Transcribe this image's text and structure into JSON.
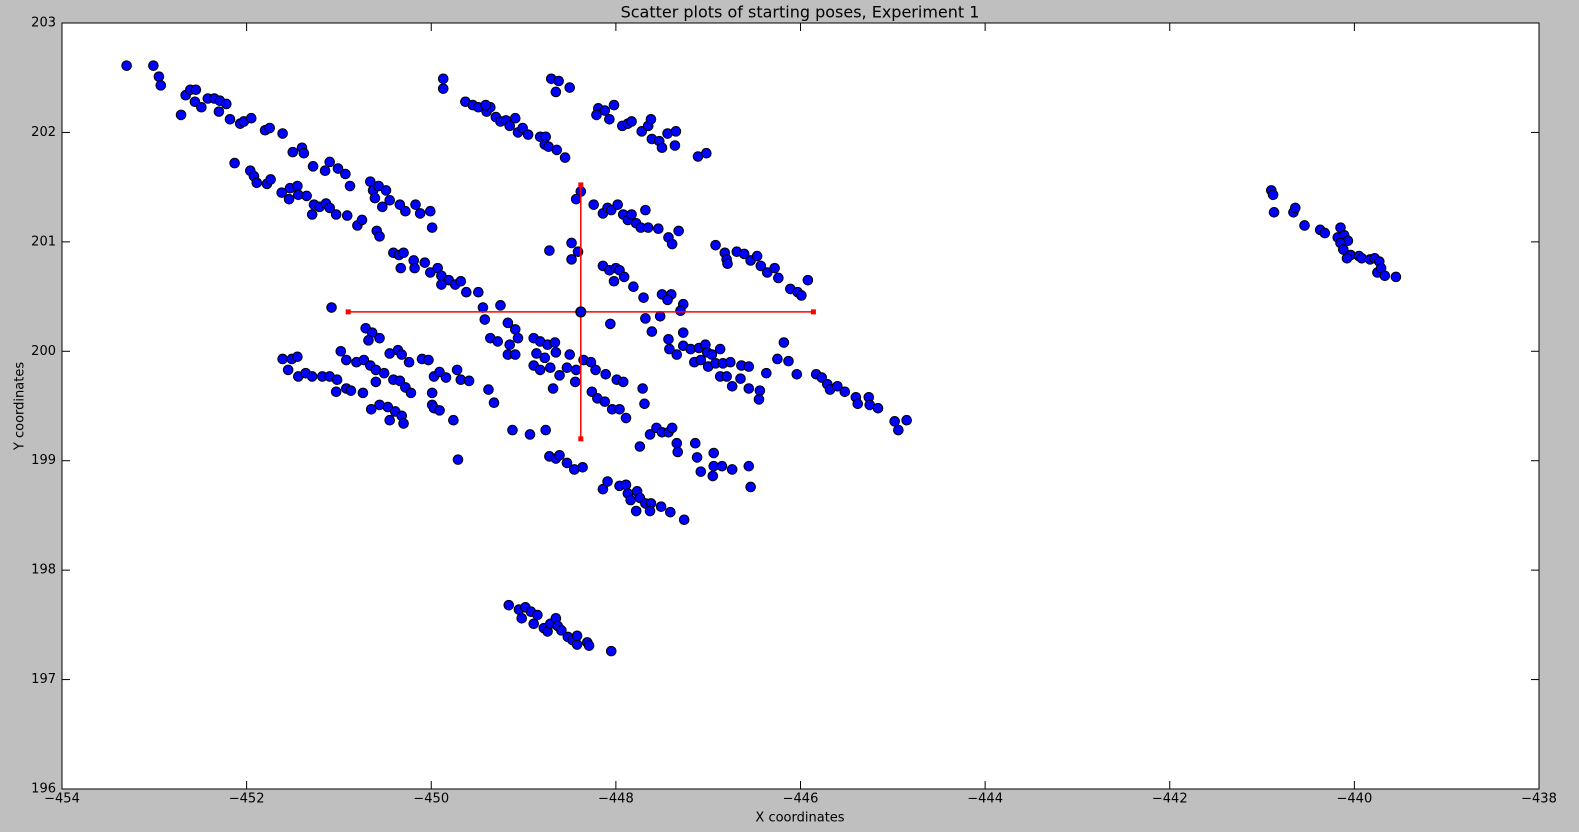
{
  "chart_data": {
    "type": "scatter",
    "title": "Scatter plots of starting poses, Experiment 1",
    "x_label": "X coordinates",
    "y_label": "Y coordinates",
    "color": "#0000ff",
    "x": [
      -453.3,
      -453.01,
      -452.95,
      -452.93,
      -452.71,
      -452.66,
      -452.61,
      -452.55,
      -452.56,
      -452.49,
      -452.42,
      -452.35,
      -452.29,
      -452.3,
      -452.22,
      -452.18,
      -452.07,
      -452.03,
      -451.95,
      -451.8,
      -451.75,
      -451.61,
      -451.5,
      -451.4,
      -451.38,
      -451.28,
      -451.15,
      -452.13,
      -451.96,
      -451.92,
      -451.89,
      -451.78,
      -451.74,
      -451.62,
      -451.53,
      -451.54,
      -451.45,
      -451.44,
      -451.35,
      -451.27,
      -451.21,
      -451.14,
      -451.1,
      -451.29,
      -451.03,
      -450.91,
      -450.8,
      -450.75,
      -451.1,
      -451.01,
      -450.93,
      -450.88,
      -450.66,
      -450.63,
      -450.57,
      -450.49,
      -450.61,
      -450.53,
      -450.45,
      -450.34,
      -450.28,
      -450.17,
      -450.12,
      -450.01,
      -449.99,
      -450.59,
      -450.56,
      -450.41,
      -450.35,
      -450.3,
      -450.33,
      -450.19,
      -450.18,
      -450.07,
      -450.01,
      -449.93,
      -449.89,
      -449.81,
      -449.74,
      -449.68,
      -449.62,
      -449.49,
      -449.44,
      -449.42,
      -449.25,
      -451.08,
      -449.89,
      -451.61,
      -451.51,
      -451.45,
      -451.55,
      -451.44,
      -451.36,
      -451.29,
      -451.18,
      -451.1,
      -451.02,
      -450.98,
      -450.92,
      -451.03,
      -450.92,
      -450.87,
      -450.81,
      -450.73,
      -450.66,
      -450.6,
      -450.51,
      -450.6,
      -450.74,
      -450.71,
      -450.64,
      -450.56,
      -450.68,
      -450.45,
      -450.36,
      -450.32,
      -450.24,
      -450.41,
      -450.34,
      -450.28,
      -450.22,
      -450.65,
      -450.56,
      -450.47,
      -450.39,
      -450.45,
      -450.32,
      -450.3,
      -450.1,
      -450.03,
      -449.97,
      -449.91,
      -449.84,
      -449.72,
      -449.68,
      -449.59,
      -449.99,
      -449.99,
      -449.97,
      -449.91,
      -449.76,
      -449.71,
      -449.87,
      -449.87,
      -449.63,
      -449.55,
      -449.49,
      -449.4,
      -449.36,
      -449.41,
      -449.3,
      -449.25,
      -449.19,
      -449.15,
      -449.09,
      -449.06,
      -449.01,
      -448.95,
      -448.82,
      -448.76,
      -448.77,
      -448.73,
      -448.64,
      -448.7,
      -448.62,
      -448.65,
      -448.5,
      -448.55,
      -448.19,
      -448.12,
      -448.21,
      -448.07,
      -448.02,
      -447.93,
      -447.87,
      -447.83,
      -447.72,
      -447.65,
      -447.62,
      -447.61,
      -447.53,
      -447.44,
      -447.35,
      -447.5,
      -447.36,
      -447.11,
      -447.02,
      -448.38,
      -448.43,
      -448.24,
      -448.14,
      -448.09,
      -448.05,
      -447.98,
      -447.92,
      -447.87,
      -447.83,
      -447.78,
      -447.68,
      -447.73,
      -447.65,
      -447.54,
      -447.43,
      -447.39,
      -447.32,
      -448.48,
      -448.41,
      -448.48,
      -448.72,
      -448.14,
      -448.07,
      -448.0,
      -447.96,
      -448.02,
      -447.91,
      -447.81,
      -447.7,
      -447.5,
      -447.4,
      -447.44,
      -447.27,
      -447.3,
      -447.52,
      -447.68,
      -448.06,
      -447.61,
      -447.27,
      -447.43,
      -447.42,
      -447.34,
      -447.27,
      -447.19,
      -447.1,
      -447.03,
      -447.01,
      -446.96,
      -446.87,
      -447.15,
      -447.08,
      -447.0,
      -446.92,
      -446.84,
      -446.76,
      -446.87,
      -446.8,
      -446.74,
      -446.92,
      -446.82,
      -446.8,
      -446.79,
      -446.69,
      -446.61,
      -446.54,
      -446.47,
      -446.43,
      -446.36,
      -446.28,
      -446.24,
      -446.11,
      -446.03,
      -445.99,
      -445.92,
      -446.64,
      -446.56,
      -446.65,
      -446.56,
      -446.44,
      -446.45,
      -446.37,
      -446.25,
      -446.13,
      -446.18,
      -446.04,
      -445.83,
      -445.77,
      -445.71,
      -445.68,
      -445.6,
      -445.52,
      -445.4,
      -445.38,
      -445.26,
      -445.25,
      -445.16,
      -444.98,
      -444.94,
      -444.85,
      -449.17,
      -449.09,
      -449.06,
      -449.15,
      -449.36,
      -449.28,
      -449.17,
      -449.09,
      -448.89,
      -448.82,
      -448.74,
      -448.66,
      -448.86,
      -448.77,
      -448.65,
      -448.89,
      -448.82,
      -448.71,
      -448.61,
      -448.68,
      -448.5,
      -448.53,
      -448.43,
      -448.44,
      -448.35,
      -448.27,
      -448.22,
      -448.11,
      -447.99,
      -447.92,
      -448.26,
      -448.2,
      -448.12,
      -448.04,
      -447.96,
      -447.89,
      -447.71,
      -447.69,
      -449.38,
      -449.32,
      -449.12,
      -448.93,
      -448.76,
      -448.72,
      -448.65,
      -448.61,
      -448.53,
      -448.45,
      -448.36,
      -447.74,
      -447.63,
      -447.56,
      -447.5,
      -447.43,
      -447.39,
      -447.34,
      -447.33,
      -447.14,
      -447.12,
      -447.08,
      -446.94,
      -446.94,
      -446.95,
      -446.85,
      -446.74,
      -446.56,
      -446.54,
      -448.14,
      -448.09,
      -447.96,
      -447.89,
      -447.87,
      -447.84,
      -447.77,
      -447.74,
      -447.78,
      -447.68,
      -447.62,
      -447.63,
      -447.51,
      -447.41,
      -447.26,
      -449.16,
      -449.05,
      -448.98,
      -449.02,
      -448.92,
      -448.85,
      -448.89,
      -448.78,
      -448.74,
      -448.71,
      -448.65,
      -448.63,
      -448.59,
      -448.52,
      -448.47,
      -448.42,
      -448.42,
      -448.31,
      -448.29,
      -448.05,
      -440.9,
      -440.88,
      -440.87,
      -440.66,
      -440.64,
      -440.54,
      -440.37,
      -440.32,
      -440.15,
      -440.18,
      -440.11,
      -440.07,
      -440.15,
      -440.12,
      -440.04,
      -440.08,
      -439.95,
      -439.92,
      -439.83,
      -439.78,
      -439.73,
      -439.75,
      -439.71,
      -439.67,
      -439.55
    ],
    "values": [
      202.61,
      202.61,
      202.51,
      202.43,
      202.16,
      202.34,
      202.39,
      202.39,
      202.28,
      202.23,
      202.31,
      202.31,
      202.29,
      202.19,
      202.26,
      202.12,
      202.08,
      202.1,
      202.13,
      202.02,
      202.04,
      201.99,
      201.82,
      201.86,
      201.81,
      201.69,
      201.65,
      201.72,
      201.65,
      201.6,
      201.54,
      201.53,
      201.57,
      201.45,
      201.49,
      201.39,
      201.51,
      201.43,
      201.42,
      201.34,
      201.32,
      201.35,
      201.31,
      201.25,
      201.25,
      201.24,
      201.15,
      201.2,
      201.73,
      201.67,
      201.62,
      201.51,
      201.55,
      201.47,
      201.51,
      201.47,
      201.4,
      201.32,
      201.38,
      201.34,
      201.28,
      201.34,
      201.26,
      201.28,
      201.13,
      201.1,
      201.05,
      200.9,
      200.88,
      200.9,
      200.76,
      200.83,
      200.76,
      200.81,
      200.72,
      200.76,
      200.69,
      200.65,
      200.61,
      200.64,
      200.54,
      200.54,
      200.4,
      200.29,
      200.42,
      200.4,
      200.61,
      199.93,
      199.93,
      199.95,
      199.83,
      199.77,
      199.8,
      199.77,
      199.77,
      199.77,
      199.74,
      200.0,
      199.92,
      199.63,
      199.66,
      199.64,
      199.9,
      199.92,
      199.87,
      199.83,
      199.8,
      199.72,
      199.62,
      200.21,
      200.17,
      200.12,
      200.1,
      199.98,
      200.01,
      199.97,
      199.9,
      199.74,
      199.73,
      199.67,
      199.62,
      199.47,
      199.51,
      199.49,
      199.45,
      199.37,
      199.41,
      199.34,
      199.93,
      199.92,
      199.77,
      199.81,
      199.76,
      199.83,
      199.74,
      199.73,
      199.62,
      199.51,
      199.48,
      199.46,
      199.37,
      199.01,
      202.49,
      202.4,
      202.28,
      202.25,
      202.23,
      202.19,
      202.23,
      202.25,
      202.14,
      202.1,
      202.11,
      202.06,
      202.13,
      202.0,
      202.04,
      201.98,
      201.96,
      201.96,
      201.89,
      201.87,
      201.84,
      202.49,
      202.47,
      202.37,
      202.41,
      201.77,
      202.22,
      202.2,
      202.16,
      202.12,
      202.25,
      202.06,
      202.08,
      202.1,
      202.01,
      202.06,
      202.12,
      201.94,
      201.92,
      201.99,
      202.01,
      201.86,
      201.88,
      201.78,
      201.81,
      201.46,
      201.39,
      201.34,
      201.26,
      201.31,
      201.29,
      201.34,
      201.25,
      201.2,
      201.25,
      201.17,
      201.29,
      201.13,
      201.13,
      201.12,
      201.04,
      200.98,
      201.1,
      200.99,
      200.91,
      200.84,
      200.92,
      200.78,
      200.74,
      200.76,
      200.74,
      200.64,
      200.68,
      200.59,
      200.49,
      200.52,
      200.52,
      200.47,
      200.43,
      200.37,
      200.32,
      200.3,
      200.25,
      200.18,
      200.17,
      200.11,
      200.02,
      199.97,
      200.05,
      200.02,
      200.03,
      200.06,
      199.99,
      199.97,
      200.02,
      199.9,
      199.92,
      199.86,
      199.89,
      199.89,
      199.9,
      199.77,
      199.77,
      199.68,
      200.97,
      200.9,
      200.84,
      200.8,
      200.91,
      200.89,
      200.83,
      200.87,
      200.78,
      200.72,
      200.76,
      200.67,
      200.57,
      200.54,
      200.51,
      200.65,
      199.87,
      199.86,
      199.75,
      199.66,
      199.64,
      199.56,
      199.8,
      199.93,
      199.91,
      200.08,
      199.79,
      199.79,
      199.76,
      199.7,
      199.65,
      199.68,
      199.63,
      199.58,
      199.52,
      199.58,
      199.51,
      199.48,
      199.36,
      199.28,
      199.37,
      200.26,
      200.2,
      200.12,
      200.06,
      200.12,
      200.09,
      199.97,
      199.97,
      200.12,
      200.09,
      200.06,
      200.08,
      199.98,
      199.94,
      199.99,
      199.87,
      199.83,
      199.85,
      199.78,
      199.66,
      199.97,
      199.85,
      199.83,
      199.72,
      199.92,
      199.9,
      199.83,
      199.79,
      199.74,
      199.72,
      199.63,
      199.57,
      199.54,
      199.47,
      199.47,
      199.39,
      199.66,
      199.52,
      199.65,
      199.53,
      199.28,
      199.24,
      199.28,
      199.04,
      199.02,
      199.05,
      198.98,
      198.92,
      198.94,
      199.13,
      199.24,
      199.3,
      199.26,
      199.26,
      199.3,
      199.16,
      199.08,
      199.16,
      199.03,
      198.9,
      199.07,
      198.95,
      198.86,
      198.95,
      198.92,
      198.95,
      198.76,
      198.74,
      198.81,
      198.77,
      198.78,
      198.7,
      198.64,
      198.72,
      198.66,
      198.54,
      198.61,
      198.61,
      198.54,
      198.58,
      198.53,
      198.46,
      197.68,
      197.64,
      197.66,
      197.56,
      197.62,
      197.59,
      197.51,
      197.47,
      197.44,
      197.51,
      197.56,
      197.49,
      197.45,
      197.39,
      197.36,
      197.32,
      197.4,
      197.34,
      197.31,
      197.26,
      201.47,
      201.43,
      201.27,
      201.27,
      201.31,
      201.15,
      201.11,
      201.08,
      201.13,
      201.04,
      201.06,
      201.01,
      200.99,
      200.93,
      200.88,
      200.85,
      200.87,
      200.85,
      200.84,
      200.85,
      200.82,
      200.72,
      200.76,
      200.69,
      200.68
    ],
    "mean": {
      "x": -448.38,
      "y": 200.36,
      "xerr": 2.52,
      "yerr": 1.16,
      "color": "#ff0000"
    },
    "xlim": [
      -454,
      -438
    ],
    "xticks": [
      {
        "value": -454,
        "label": "−454"
      },
      {
        "value": -452,
        "label": "−452"
      },
      {
        "value": -450,
        "label": "−450"
      },
      {
        "value": -448,
        "label": "−448"
      },
      {
        "value": -446,
        "label": "−446"
      },
      {
        "value": -444,
        "label": "−444"
      },
      {
        "value": -442,
        "label": "−442"
      },
      {
        "value": -440,
        "label": "−440"
      },
      {
        "value": -438,
        "label": "−438"
      }
    ],
    "ylim": [
      196,
      203
    ],
    "yticks": [
      196,
      197,
      198,
      199,
      200,
      201,
      202,
      203
    ],
    "grid": false
  }
}
